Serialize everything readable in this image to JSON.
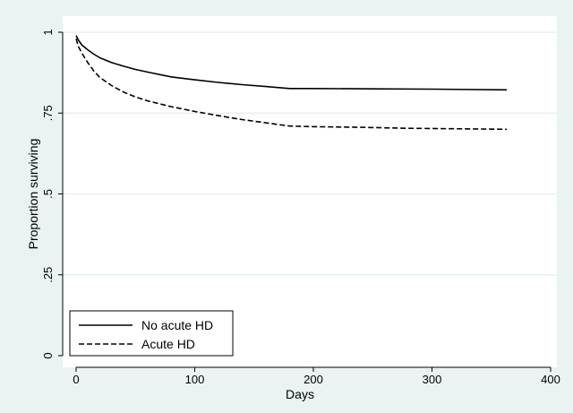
{
  "chart_data": {
    "type": "line",
    "title": "",
    "xlabel": "Days",
    "ylabel": "Proportion surviving",
    "xlim": [
      0,
      400
    ],
    "ylim": [
      0,
      1
    ],
    "x_ticks": [
      0,
      100,
      200,
      300,
      400
    ],
    "x_tick_labels": [
      "0",
      "100",
      "200",
      "300",
      "400"
    ],
    "y_ticks": [
      0,
      0.25,
      0.5,
      0.75,
      1
    ],
    "y_tick_labels": [
      "0",
      ".25",
      ".5",
      ".75",
      "1"
    ],
    "grid": "horizontal",
    "legend_position": "bottom-left",
    "colors": {
      "background": "#eaf2f3",
      "plot_background": "#ffffff",
      "grid": "#e3eef0",
      "line": "#000000"
    },
    "series": [
      {
        "name": "No acute HD",
        "style": "solid",
        "x": [
          0,
          2,
          5,
          10,
          15,
          20,
          30,
          40,
          50,
          60,
          80,
          100,
          120,
          140,
          160,
          180,
          200,
          250,
          300,
          363
        ],
        "y": [
          0.99,
          0.975,
          0.96,
          0.945,
          0.932,
          0.921,
          0.906,
          0.895,
          0.885,
          0.877,
          0.862,
          0.853,
          0.845,
          0.838,
          0.832,
          0.826,
          0.826,
          0.825,
          0.824,
          0.822
        ]
      },
      {
        "name": "Acute HD",
        "style": "dashed",
        "x": [
          0,
          2,
          5,
          10,
          15,
          20,
          30,
          40,
          50,
          60,
          80,
          100,
          120,
          140,
          160,
          180,
          200,
          240,
          280,
          363
        ],
        "y": [
          0.98,
          0.955,
          0.935,
          0.905,
          0.88,
          0.86,
          0.835,
          0.815,
          0.8,
          0.788,
          0.77,
          0.755,
          0.742,
          0.73,
          0.72,
          0.71,
          0.708,
          0.706,
          0.703,
          0.7
        ]
      }
    ]
  }
}
